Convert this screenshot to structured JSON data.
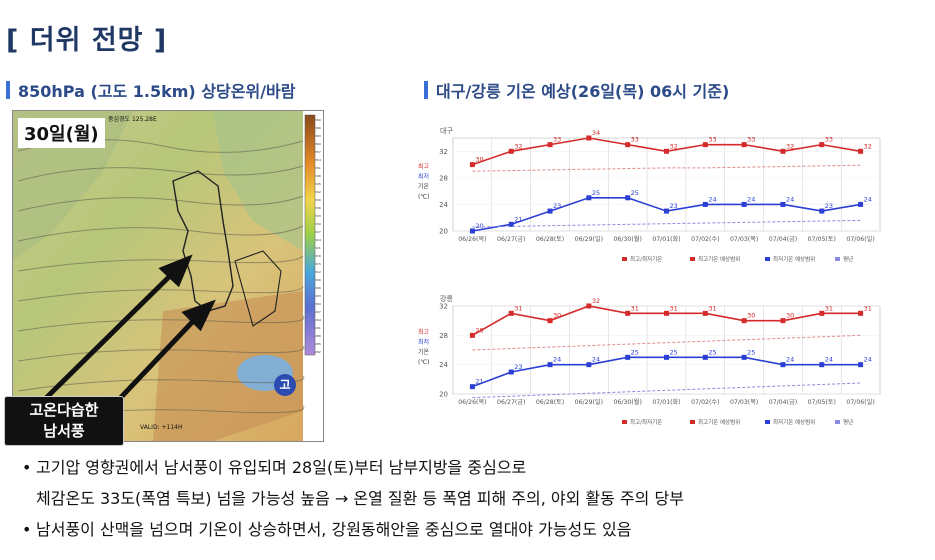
{
  "page_title": "[ 더위 전망 ]",
  "left_section": {
    "heading": "850hPa (고도 1.5km) 상당온위/바람",
    "day_label": "30일(월)",
    "map_center": "중심경도 125.28E",
    "valid": "VALID: +114H",
    "high_marker": "고",
    "arrow_caption_line1": "고온다습한",
    "arrow_caption_line2": "남서풍",
    "scale_labels": [
      "369",
      "366",
      "363",
      "360",
      "357",
      "354",
      "351",
      "348",
      "345",
      "342",
      "339",
      "336",
      "333",
      "330",
      "327",
      "324",
      "321",
      "318",
      "315",
      "312",
      "309",
      "306",
      "303",
      "300",
      "297",
      "294",
      "291",
      "288",
      "285",
      "282"
    ]
  },
  "right_section": {
    "heading": "대구/강릉 기온 예상(26일(목) 06시 기준)"
  },
  "chart_data": [
    {
      "type": "line",
      "title": "대구",
      "ylabel": "최고 최저 기온 (℃)",
      "ylim": [
        20,
        34
      ],
      "yticks": [
        20,
        24,
        28,
        32
      ],
      "categories": [
        "06/26(목)",
        "06/27(금)",
        "06/28(토)",
        "06/29(일)",
        "06/30(월)",
        "07/01(화)",
        "07/02(수)",
        "07/03(목)",
        "07/04(금)",
        "07/05(토)",
        "07/06(일)"
      ],
      "series": [
        {
          "name": "최고기온",
          "color": "#d42a2a",
          "values": [
            30,
            32,
            33,
            34,
            33,
            32,
            33,
            33,
            32,
            33,
            32
          ]
        },
        {
          "name": "최저기온",
          "color": "#2a3fd4",
          "values": [
            20,
            21,
            23,
            25,
            25,
            23,
            24,
            24,
            24,
            23,
            24
          ]
        },
        {
          "name": "평년 최고",
          "color": "#e08a8a",
          "dashed": true,
          "values": [
            29.0,
            29.1,
            29.2,
            29.3,
            29.4,
            29.5,
            29.5,
            29.6,
            29.7,
            29.8,
            29.9
          ]
        },
        {
          "name": "평년 최저",
          "color": "#8a8ae0",
          "dashed": true,
          "values": [
            20.6,
            20.7,
            20.8,
            20.9,
            21.0,
            21.1,
            21.2,
            21.3,
            21.4,
            21.5,
            21.6
          ]
        }
      ],
      "legend": [
        "최고/최저기온",
        "최고기온 예상범위",
        "최저기온 예상범위",
        "평년"
      ]
    },
    {
      "type": "line",
      "title": "강릉",
      "ylabel": "최고 최저 기온 (℃)",
      "ylim": [
        20,
        32
      ],
      "yticks": [
        20,
        24,
        28,
        32
      ],
      "categories": [
        "06/26(목)",
        "06/27(금)",
        "06/28(토)",
        "06/29(일)",
        "06/30(월)",
        "07/01(화)",
        "07/02(수)",
        "07/03(목)",
        "07/04(금)",
        "07/05(토)",
        "07/06(일)"
      ],
      "series": [
        {
          "name": "최고기온",
          "color": "#d42a2a",
          "values": [
            28,
            31,
            30,
            32,
            31,
            31,
            31,
            30,
            30,
            31,
            31
          ]
        },
        {
          "name": "최저기온",
          "color": "#2a3fd4",
          "values": [
            21,
            23,
            24,
            24,
            25,
            25,
            25,
            25,
            24,
            24,
            24
          ]
        },
        {
          "name": "평년 최고",
          "color": "#e08a8a",
          "dashed": true,
          "values": [
            26.0,
            26.2,
            26.4,
            26.6,
            26.8,
            27.0,
            27.2,
            27.4,
            27.6,
            27.8,
            28.0
          ]
        },
        {
          "name": "평년 최저",
          "color": "#8a8ae0",
          "dashed": true,
          "values": [
            19.5,
            19.7,
            19.9,
            20.1,
            20.3,
            20.5,
            20.7,
            20.9,
            21.1,
            21.3,
            21.5
          ]
        }
      ],
      "legend": [
        "최고/최저기온",
        "최고기온 예상범위",
        "최저기온 예상범위",
        "평년"
      ]
    }
  ],
  "bullets": [
    "고기압 영향권에서 남서풍이 유입되며 28일(토)부터 남부지방을 중심으로",
    "체감온도 33도(폭염 특보) 넘을 가능성 높음 → 온열 질환 등 폭염 피해 주의, 야외 활동 주의 당부",
    "남서풍이 산맥을 넘으며 기온이 상승하면서, 강원동해안을 중심으로 열대야 가능성도 있음"
  ]
}
